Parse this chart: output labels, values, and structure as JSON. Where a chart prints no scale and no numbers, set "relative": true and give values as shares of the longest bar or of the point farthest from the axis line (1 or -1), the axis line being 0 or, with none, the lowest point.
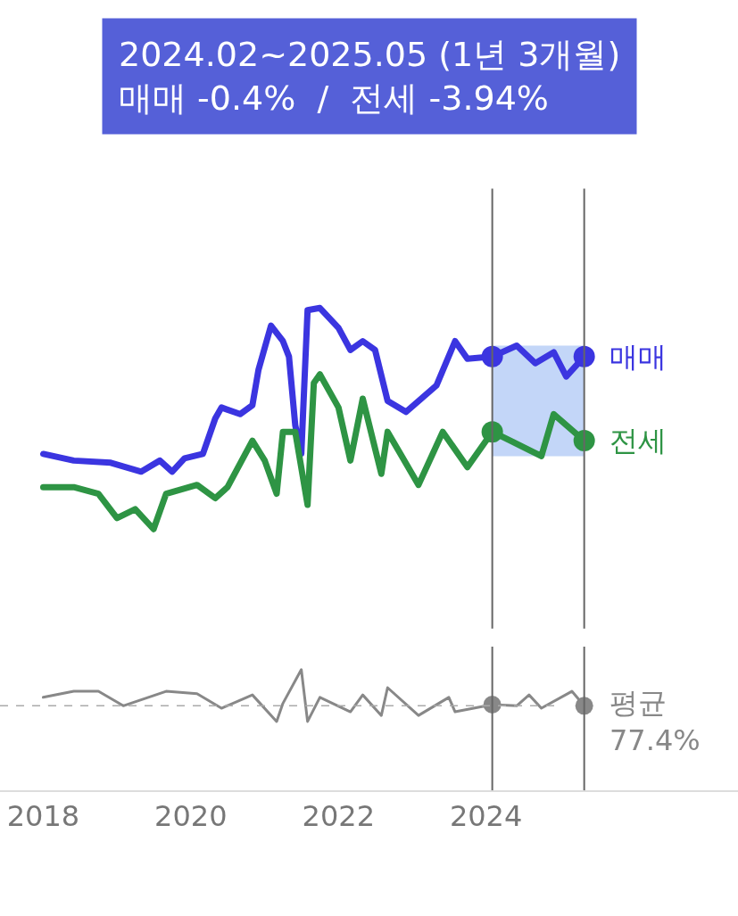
{
  "chart_data": [
    {
      "type": "line",
      "relative": true,
      "title": "2024.02~2025.05 (1년 3개월)",
      "subtitle": "매매 -0.4%  /  전세 -3.94%",
      "xlim": [
        "2017-06",
        "2027-06"
      ],
      "tick_labels": false,
      "marker": "none",
      "series": [
        {
          "name": "매매",
          "color": "#3b35e0",
          "x": [
            "2018-01",
            "2018-06",
            "2018-12",
            "2019-05",
            "2019-08",
            "2019-10",
            "2019-12",
            "2020-03",
            "2020-05",
            "2020-06",
            "2020-09",
            "2020-11",
            "2020-12",
            "2021-02",
            "2021-04",
            "2021-05",
            "2021-06",
            "2021-07",
            "2021-08",
            "2021-10",
            "2022-01",
            "2022-03",
            "2022-05",
            "2022-07",
            "2022-09",
            "2022-12",
            "2023-05",
            "2023-08",
            "2023-10",
            "2024-02",
            "2024-06",
            "2024-09",
            "2024-12",
            "2025-02",
            "2025-05"
          ],
          "values": [
            0.34,
            0.31,
            0.3,
            0.26,
            0.31,
            0.26,
            0.32,
            0.34,
            0.5,
            0.55,
            0.52,
            0.56,
            0.72,
            0.92,
            0.85,
            0.78,
            0.47,
            0.34,
            0.99,
            1,
            0.91,
            0.81,
            0.85,
            0.81,
            0.58,
            0.53,
            0.65,
            0.85,
            0.77,
            0.78,
            0.83,
            0.75,
            0.8,
            0.69,
            0.78
          ]
        },
        {
          "name": "전세",
          "color": "#2e9444",
          "x": [
            "2018-01",
            "2018-06",
            "2018-10",
            "2019-01",
            "2019-04",
            "2019-07",
            "2019-09",
            "2020-02",
            "2020-05",
            "2020-07",
            "2020-11",
            "2021-01",
            "2021-03",
            "2021-04",
            "2021-06",
            "2021-08",
            "2021-09",
            "2021-10",
            "2022-01",
            "2022-03",
            "2022-05",
            "2022-08",
            "2022-09",
            "2023-02",
            "2023-06",
            "2023-10",
            "2024-02",
            "2024-05",
            "2024-10",
            "2024-12",
            "2025-05"
          ],
          "values": [
            0.19,
            0.19,
            0.16,
            0.05,
            0.09,
            0,
            0.16,
            0.2,
            0.14,
            0.19,
            0.4,
            0.31,
            0.16,
            0.44,
            0.44,
            0.11,
            0.66,
            0.7,
            0.55,
            0.31,
            0.59,
            0.25,
            0.44,
            0.2,
            0.44,
            0.28,
            0.44,
            0.4,
            0.33,
            0.52,
            0.4
          ]
        },
        {
          "type": "scatter",
          "marker": "circle",
          "color": "#3b35e0",
          "x": [
            "2024-02",
            "2025-05"
          ],
          "values": [
            0.78,
            0.78
          ]
        },
        {
          "type": "scatter",
          "marker": "circle",
          "color": "#2e9444",
          "x": [
            "2024-02",
            "2025-05"
          ],
          "values": [
            0.44,
            0.4
          ]
        }
      ],
      "bands": [
        {
          "axis": "x",
          "from": "2024-02",
          "to": "2025-05",
          "color": "#a9c4f5"
        }
      ],
      "ref_lines": [
        {
          "axis": "x",
          "value": "2024-02",
          "color": "#666666"
        },
        {
          "axis": "x",
          "value": "2025-05",
          "color": "#666666"
        }
      ]
    },
    {
      "type": "line",
      "relative": true,
      "xlim": [
        "2017-06",
        "2027-06"
      ],
      "xticks": [
        {
          "value": "2018",
          "label": "2018"
        },
        {
          "value": "2020",
          "label": "2020"
        },
        {
          "value": "2022",
          "label": "2022"
        },
        {
          "value": "2024",
          "label": "2024"
        }
      ],
      "tick_labels": "x",
      "marker": "none",
      "annotations": [
        "77.4%"
      ],
      "series": [
        {
          "name": "평균",
          "color": "#888888",
          "x": [
            "2018-01",
            "2018-06",
            "2018-10",
            "2019-02",
            "2019-09",
            "2020-02",
            "2020-06",
            "2020-11",
            "2021-03",
            "2021-04",
            "2021-07",
            "2021-08",
            "2021-10",
            "2022-03",
            "2022-05",
            "2022-08",
            "2022-09",
            "2023-02",
            "2023-07",
            "2023-08",
            "2024-02",
            "2024-06",
            "2024-08",
            "2024-10",
            "2025-03",
            "2025-05"
          ],
          "values": [
            0.77,
            0.82,
            0.82,
            0.7,
            0.82,
            0.8,
            0.68,
            0.79,
            0.57,
            0.72,
            1,
            0.57,
            0.77,
            0.65,
            0.79,
            0.62,
            0.85,
            0.62,
            0.77,
            0.65,
            0.71,
            0.7,
            0.79,
            0.68,
            0.82,
            0.7
          ]
        },
        {
          "type": "scatter",
          "marker": "circle",
          "color": "#888888",
          "x": [
            "2024-02",
            "2025-05"
          ],
          "values": [
            0.71,
            0.7
          ]
        }
      ],
      "ref_lines": [
        {
          "axis": "y",
          "value": 0.7,
          "color": "#aaaaaa",
          "line_style": "dashed"
        },
        {
          "axis": "x",
          "value": "2024-02",
          "color": "#666666"
        },
        {
          "axis": "x",
          "value": "2025-05",
          "color": "#666666"
        }
      ]
    }
  ]
}
